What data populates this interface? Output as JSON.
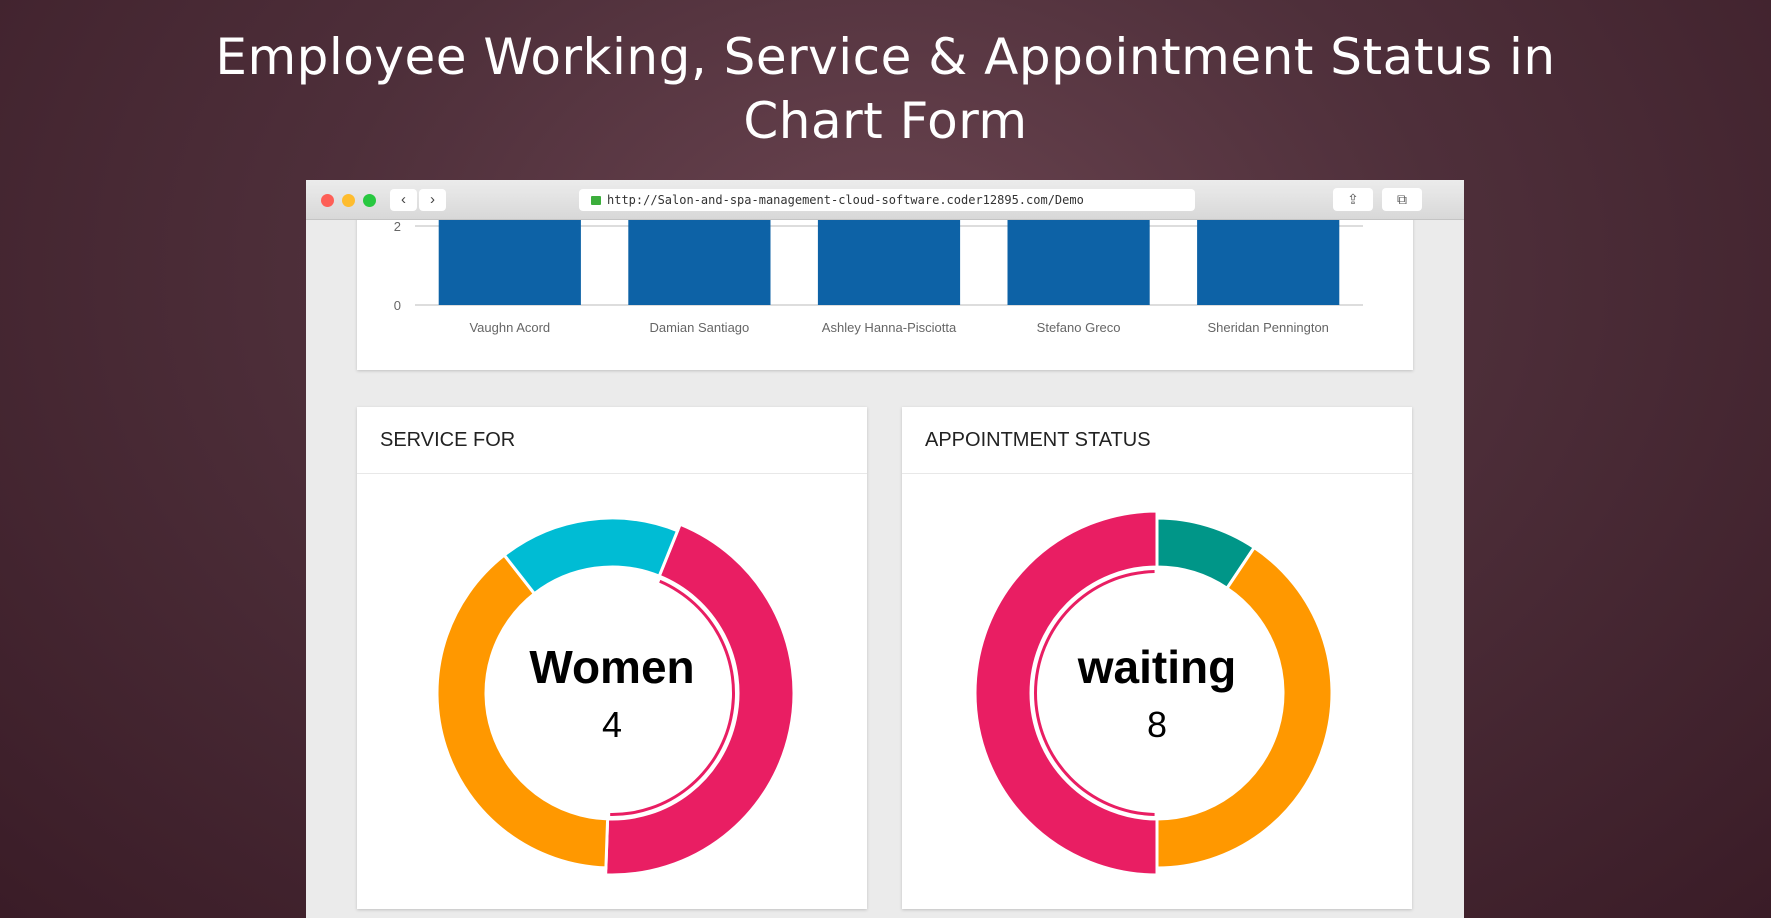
{
  "page": {
    "title_line1": "Employee Working, Service & Appointment Status in",
    "title_line2": "Chart Form"
  },
  "browser": {
    "url": "http://Salon-and-spa-management-cloud-software.coder12895.com/Demo",
    "traffic_lights": [
      "#fe5f57",
      "#febc2e",
      "#28c840"
    ],
    "back_icon": "‹",
    "forward_icon": "›",
    "share_icon": "⇪",
    "tabs_icon": "⧉",
    "new_tab_icon": "+"
  },
  "chart_data": [
    {
      "type": "bar",
      "categories": [
        "Vaughn Acord",
        "Damian Santiago",
        "Ashley Hanna-Pisciotta",
        "Stefano Greco",
        "Sheridan Pennington"
      ],
      "values": [
        3,
        3,
        3,
        3,
        3
      ],
      "y_ticks": [
        "0",
        "2"
      ],
      "ylim": [
        0,
        2.3
      ],
      "color": "#0d62a6",
      "grid": true
    },
    {
      "type": "pie",
      "title": "SERVICE FOR",
      "donut": true,
      "center_label": "Women",
      "center_value": "4",
      "values": [
        4,
        3.5,
        1.5
      ],
      "colors": [
        "#e91e63",
        "#ff9800",
        "#00bcd4"
      ],
      "highlighted_index": 0
    },
    {
      "type": "pie",
      "title": "APPOINTMENT STATUS",
      "donut": true,
      "center_label": "waiting",
      "center_value": "8",
      "values": [
        1.5,
        6.5,
        8
      ],
      "colors": [
        "#009688",
        "#ff9800",
        "#e91e63"
      ],
      "highlighted_index": 2
    }
  ]
}
